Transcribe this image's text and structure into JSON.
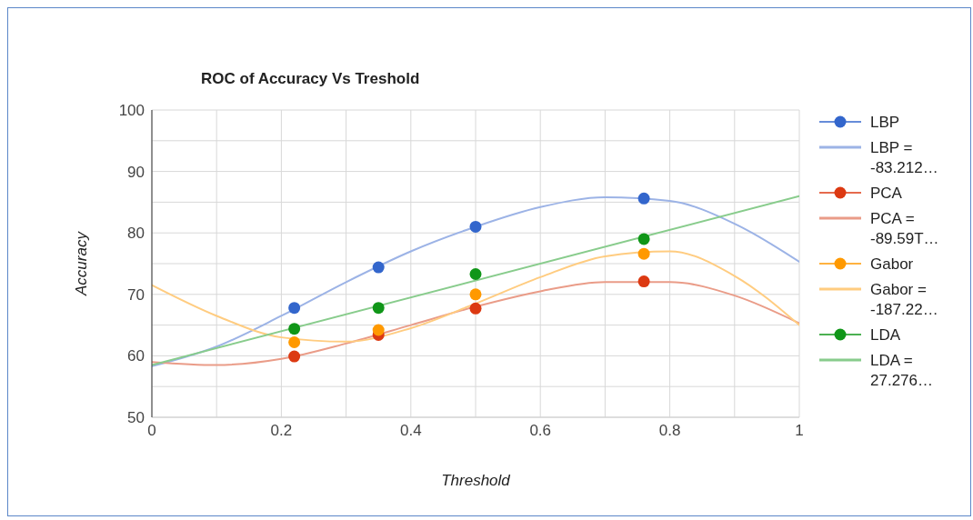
{
  "chart_data": {
    "type": "line",
    "title": "ROC of Accuracy Vs Treshold",
    "xlabel": "Threshold",
    "ylabel": "Accuracy",
    "xlim": [
      0,
      1
    ],
    "xticks": [
      0,
      {
        "value": 0.1,
        "label": null
      },
      0.2,
      {
        "value": 0.3,
        "label": null
      },
      0.4,
      {
        "value": 0.5,
        "label": null
      },
      0.6,
      {
        "value": 0.7,
        "label": null
      },
      0.8,
      {
        "value": 0.9,
        "label": null
      },
      1
    ],
    "ylim": [
      50,
      100
    ],
    "yticks": [
      50,
      {
        "value": 55,
        "label": null
      },
      60,
      {
        "value": 65,
        "label": null
      },
      70,
      {
        "value": 75,
        "label": null
      },
      80,
      {
        "value": 85,
        "label": null
      },
      90,
      {
        "value": 95,
        "label": null
      },
      100
    ],
    "grid": true,
    "legend": "right",
    "series": [
      {
        "name": "LBP",
        "type": "scatter",
        "marker": "circle",
        "color": "#3366cc",
        "x": [
          0.22,
          0.35,
          0.5,
          0.76
        ],
        "values": [
          67.8,
          74.4,
          81.0,
          85.6
        ]
      },
      {
        "name": "LBP = -83.212…",
        "marker": "none",
        "color": "#9cb3e6",
        "x": [
          0,
          0.1,
          0.2,
          0.3,
          0.4,
          0.5,
          0.6,
          0.7,
          0.8,
          0.9,
          1
        ],
        "values": [
          58.3,
          61.5,
          66.5,
          72,
          77,
          81,
          84.2,
          85.8,
          85.2,
          81.5,
          75.3
        ]
      },
      {
        "name": "PCA",
        "type": "scatter",
        "marker": "circle",
        "color": "#dc3912",
        "x": [
          0.22,
          0.35,
          0.5,
          0.76
        ],
        "values": [
          59.9,
          63.4,
          67.7,
          72.1
        ]
      },
      {
        "name": "PCA = -89.59T…",
        "marker": "none",
        "color": "#ea9c88",
        "x": [
          0,
          0.1,
          0.2,
          0.3,
          0.4,
          0.5,
          0.6,
          0.7,
          0.8,
          0.9,
          1
        ],
        "values": [
          59,
          58.5,
          59.5,
          62,
          65,
          68,
          70.5,
          72,
          72,
          69.8,
          65.3
        ]
      },
      {
        "name": "Gabor",
        "type": "scatter",
        "marker": "circle",
        "color": "#ff9900",
        "x": [
          0.22,
          0.35,
          0.5,
          0.76
        ],
        "values": [
          62.2,
          64.2,
          70.0,
          76.6
        ]
      },
      {
        "name": "Gabor = -187.22…",
        "marker": "none",
        "color": "#ffcc80",
        "x": [
          0,
          0.1,
          0.2,
          0.3,
          0.4,
          0.5,
          0.6,
          0.7,
          0.8,
          0.9,
          1
        ],
        "values": [
          71.5,
          66.5,
          63,
          62.3,
          64.5,
          68.5,
          72.8,
          76.2,
          77,
          73,
          65
        ]
      },
      {
        "name": "LDA",
        "type": "scatter",
        "marker": "circle",
        "color": "#109618",
        "x": [
          0.22,
          0.35,
          0.5,
          0.76
        ],
        "values": [
          64.4,
          67.8,
          73.3,
          79.0
        ]
      },
      {
        "name": "LDA = 27.276…",
        "marker": "none",
        "color": "#88cc8c",
        "x": [
          0,
          1
        ],
        "values": [
          58.5,
          86
        ]
      }
    ]
  }
}
